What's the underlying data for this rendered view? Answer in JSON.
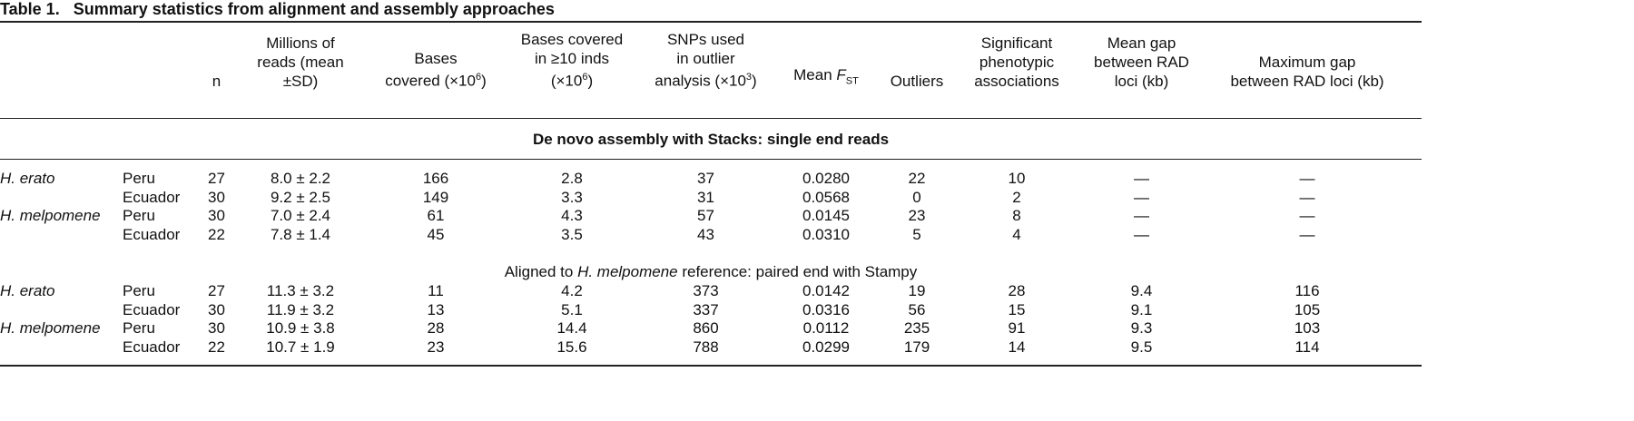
{
  "table_label": "Table 1.",
  "title": "Summary statistics from alignment and assembly approaches",
  "headers": [
    [
      "n"
    ],
    [
      "Millions of",
      "reads (mean",
      "±SD)"
    ],
    [
      "Bases",
      "covered (×10",
      "6",
      ")"
    ],
    [
      "Bases covered",
      "in ≥10 inds",
      "(×10",
      "6",
      ")"
    ],
    [
      "SNPs used",
      "in outlier",
      "analysis (×10",
      "3",
      ")"
    ],
    [
      "Mean ",
      "F",
      "ST"
    ],
    [
      "Outliers"
    ],
    [
      "Significant",
      "phenotypic",
      "associations"
    ],
    [
      "Mean gap",
      "between RAD",
      "loci (kb)"
    ],
    [
      "Maximum gap",
      "between RAD loci (kb)"
    ]
  ],
  "sections": [
    {
      "title": [
        "De novo assembly with Stacks: single end reads"
      ],
      "rows": [
        {
          "species": "H. erato",
          "cells": [
            "Peru",
            "27",
            "8.0 ± 2.2",
            "166",
            "2.8",
            "37",
            "0.0280",
            "22",
            "10",
            "—",
            "—"
          ]
        },
        {
          "cells": [
            "Ecuador",
            "30",
            "9.2 ± 2.5",
            "149",
            "3.3",
            "31",
            "0.0568",
            "0",
            "2",
            "—",
            "—"
          ]
        },
        {
          "species": "H. melpomene",
          "cells": [
            "Peru",
            "30",
            "7.0 ± 2.4",
            "61",
            "4.3",
            "57",
            "0.0145",
            "23",
            "8",
            "—",
            "—"
          ]
        },
        {
          "cells": [
            "Ecuador",
            "22",
            "7.8 ± 1.4",
            "45",
            "3.5",
            "43",
            "0.0310",
            "5",
            "4",
            "—",
            "—"
          ]
        }
      ]
    },
    {
      "title": [
        "Aligned to ",
        "H. melpomene",
        " reference: paired end with Stampy"
      ],
      "rows": [
        {
          "species": "H. erato",
          "cells": [
            "Peru",
            "27",
            "11.3 ± 3.2",
            "11",
            "4.2",
            "373",
            "0.0142",
            "19",
            "28",
            "9.4",
            "116"
          ]
        },
        {
          "cells": [
            "Ecuador",
            "30",
            "11.9 ± 3.2",
            "13",
            "5.1",
            "337",
            "0.0316",
            "56",
            "15",
            "9.1",
            "105"
          ]
        },
        {
          "species": "H. melpomene",
          "cells": [
            "Peru",
            "30",
            "10.9 ± 3.8",
            "28",
            "14.4",
            "860",
            "0.0112",
            "235",
            "91",
            "9.3",
            "103"
          ]
        },
        {
          "cells": [
            "Ecuador",
            "22",
            "10.7 ± 1.9",
            "23",
            "15.6",
            "788",
            "0.0299",
            "179",
            "14",
            "9.5",
            "114"
          ]
        }
      ]
    }
  ]
}
